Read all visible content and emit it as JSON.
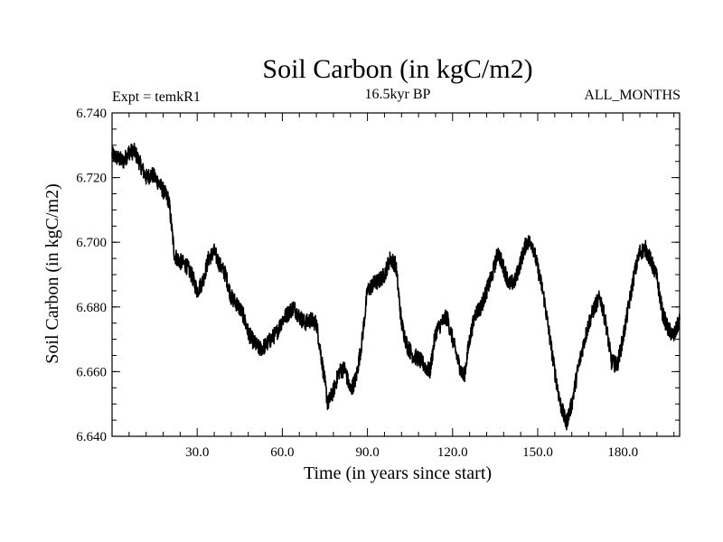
{
  "chart_data": {
    "type": "line",
    "title": "Soil Carbon (in kgC/m2)",
    "subtitle": "16.5kyr BP",
    "left_annotation": "Expt = temkR1",
    "right_annotation": "ALL_MONTHS",
    "xlabel": "Time (in years since start)",
    "ylabel": "Soil Carbon (in kgC/m2)",
    "xlim": [
      0,
      200
    ],
    "ylim": [
      6.64,
      6.74
    ],
    "x_ticks": [
      30,
      60,
      90,
      120,
      150,
      180
    ],
    "x_tick_labels": [
      "30.0",
      "60.0",
      "90.0",
      "120.0",
      "150.0",
      "180.0"
    ],
    "y_ticks": [
      6.64,
      6.66,
      6.68,
      6.7,
      6.72,
      6.74
    ],
    "y_tick_labels": [
      "6.640",
      "6.660",
      "6.680",
      "6.700",
      "6.720",
      "6.740"
    ],
    "grid": false,
    "series": [
      {
        "name": "Soil Carbon",
        "color": "#000000",
        "x": [
          0,
          2,
          4,
          6,
          8,
          10,
          12,
          14,
          16,
          18,
          20,
          22,
          24,
          26,
          28,
          30,
          32,
          34,
          36,
          38,
          40,
          42,
          44,
          46,
          48,
          50,
          52,
          54,
          56,
          58,
          60,
          62,
          64,
          66,
          68,
          70,
          72,
          74,
          76,
          78,
          80,
          82,
          84,
          86,
          88,
          90,
          92,
          94,
          96,
          98,
          100,
          102,
          104,
          106,
          108,
          110,
          112,
          114,
          116,
          118,
          120,
          122,
          124,
          126,
          128,
          130,
          132,
          134,
          136,
          138,
          140,
          142,
          144,
          146,
          148,
          150,
          152,
          154,
          156,
          158,
          160,
          162,
          164,
          166,
          168,
          170,
          172,
          174,
          176,
          178,
          180,
          182,
          184,
          186,
          188,
          190,
          192,
          194,
          196,
          198,
          200
        ],
        "values": [
          6.727,
          6.726,
          6.725,
          6.728,
          6.728,
          6.724,
          6.72,
          6.721,
          6.719,
          6.716,
          6.713,
          6.696,
          6.694,
          6.693,
          6.69,
          6.685,
          6.688,
          6.695,
          6.697,
          6.693,
          6.69,
          6.683,
          6.681,
          6.678,
          6.672,
          6.669,
          6.667,
          6.668,
          6.67,
          6.672,
          6.676,
          6.678,
          6.68,
          6.677,
          6.675,
          6.676,
          6.675,
          6.663,
          6.65,
          6.654,
          6.66,
          6.661,
          6.654,
          6.658,
          6.669,
          6.685,
          6.687,
          6.688,
          6.69,
          6.695,
          6.693,
          6.675,
          6.668,
          6.665,
          6.664,
          6.662,
          6.66,
          6.672,
          6.675,
          6.677,
          6.67,
          6.663,
          6.658,
          6.67,
          6.678,
          6.68,
          6.685,
          6.69,
          6.697,
          6.692,
          6.687,
          6.688,
          6.694,
          6.7,
          6.7,
          6.692,
          6.684,
          6.672,
          6.66,
          6.65,
          6.644,
          6.65,
          6.66,
          6.668,
          6.675,
          6.68,
          6.683,
          6.675,
          6.663,
          6.662,
          6.67,
          6.68,
          6.69,
          6.697,
          6.698,
          6.694,
          6.689,
          6.678,
          6.673,
          6.671,
          6.676
        ]
      }
    ]
  }
}
